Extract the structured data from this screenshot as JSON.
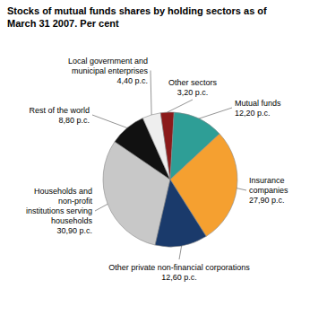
{
  "chart_data": {
    "type": "pie",
    "title": "Stocks of mutual funds shares by holding sectors as of\nMarch 31 2007. Per cent",
    "categories": [
      "Households and\nnon-profit\ninstitutions serving\nhouseholds",
      "Rest of the world",
      "Local government and\nmunicipal enterprises",
      "Other sectors",
      "Mutual funds",
      "Insurance\ncompanies",
      "Other private non-financial corporations"
    ],
    "values": [
      30.9,
      8.8,
      4.4,
      3.2,
      12.2,
      27.9,
      12.6
    ],
    "value_labels": [
      "30,90 p.c.",
      "8,80 p.c.",
      "4,40 p.c.",
      "3,20 p.c.",
      "12,20 p.c.",
      "27,90 p.c.",
      "12,60 p.c."
    ],
    "colors": [
      "#c8c8c8",
      "#111111",
      "#eeeeee",
      "#8b1a1a",
      "#2e9e96",
      "#f5a030",
      "#1a3a6b"
    ],
    "data_labels": true
  }
}
